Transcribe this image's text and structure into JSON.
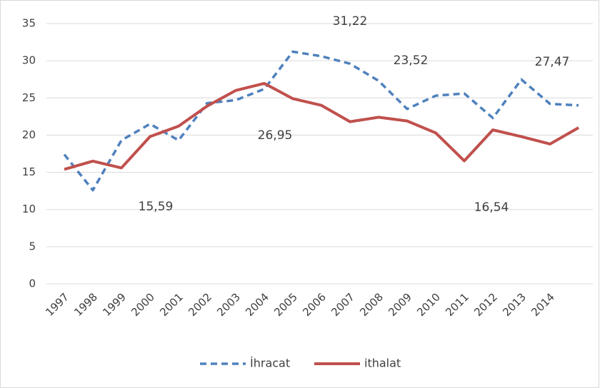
{
  "chart_data": {
    "type": "line",
    "categories": [
      "1997",
      "1998",
      "1999",
      "2000",
      "2001",
      "2002",
      "2003",
      "2004",
      "2005",
      "2006",
      "2007",
      "2008",
      "2009",
      "2010",
      "2011",
      "2012",
      "2013",
      "2014",
      null
    ],
    "series": [
      {
        "name": "İhracat",
        "color": "#4f81bd",
        "dashed": true,
        "values": [
          17.4,
          12.6,
          19.3,
          21.5,
          19.3,
          24.3,
          24.7,
          26.2,
          31.22,
          30.6,
          29.6,
          27.3,
          23.52,
          25.3,
          25.6,
          22.3,
          27.47,
          24.2,
          24.0
        ],
        "value_labels": [
          null,
          null,
          null,
          null,
          null,
          null,
          null,
          null,
          "31,22",
          null,
          null,
          null,
          "23,52",
          null,
          null,
          null,
          "27,47",
          null,
          null
        ]
      },
      {
        "name": "ithalat",
        "color": "#c0504d",
        "dashed": false,
        "values": [
          15.4,
          16.5,
          15.59,
          19.8,
          21.2,
          23.9,
          26.0,
          26.95,
          24.9,
          24.0,
          21.8,
          22.4,
          21.9,
          20.3,
          16.54,
          20.7,
          19.8,
          18.8,
          21.0
        ],
        "value_labels": [
          null,
          null,
          "15,59",
          null,
          null,
          null,
          null,
          "26,95",
          null,
          null,
          null,
          null,
          null,
          null,
          "16,54",
          null,
          null,
          null,
          null
        ]
      }
    ],
    "ylim": [
      0,
      35
    ],
    "yticks": [
      0,
      5,
      10,
      15,
      20,
      25,
      30,
      35
    ],
    "grid": true,
    "legend": "bottom"
  }
}
